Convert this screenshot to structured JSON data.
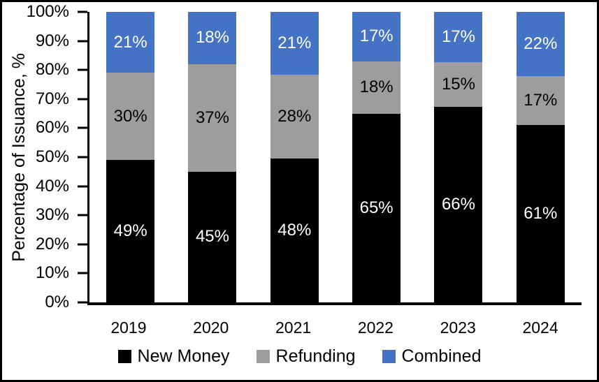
{
  "chart_data": {
    "type": "bar",
    "stacked": true,
    "percent_stacked": true,
    "title": "",
    "xlabel": "",
    "ylabel": "Percentage of Issuance, %",
    "ylim": [
      0,
      100
    ],
    "grid": false,
    "legend_position": "bottom",
    "y_ticks": [
      "0%",
      "10%",
      "20%",
      "30%",
      "40%",
      "50%",
      "60%",
      "70%",
      "80%",
      "90%",
      "100%"
    ],
    "categories": [
      "2019",
      "2020",
      "2021",
      "2022",
      "2023",
      "2024"
    ],
    "series": [
      {
        "name": "New Money",
        "color": "#000000",
        "label_color": "#FFFFFF",
        "values": [
          49,
          45,
          48,
          65,
          66,
          61
        ],
        "labels": [
          "49%",
          "45%",
          "48%",
          "65%",
          "66%",
          "61%"
        ]
      },
      {
        "name": "Refunding",
        "color": "#9D9D9D",
        "label_color": "#000000",
        "values": [
          30,
          37,
          28,
          18,
          15,
          17
        ],
        "labels": [
          "30%",
          "37%",
          "28%",
          "18%",
          "15%",
          "17%"
        ]
      },
      {
        "name": "Combined",
        "color": "#4472C4",
        "label_color": "#FFFFFF",
        "values": [
          21,
          18,
          21,
          17,
          17,
          22
        ],
        "labels": [
          "21%",
          "18%",
          "21%",
          "17%",
          "17%",
          "22%"
        ]
      }
    ],
    "axis_color": "#000000"
  }
}
